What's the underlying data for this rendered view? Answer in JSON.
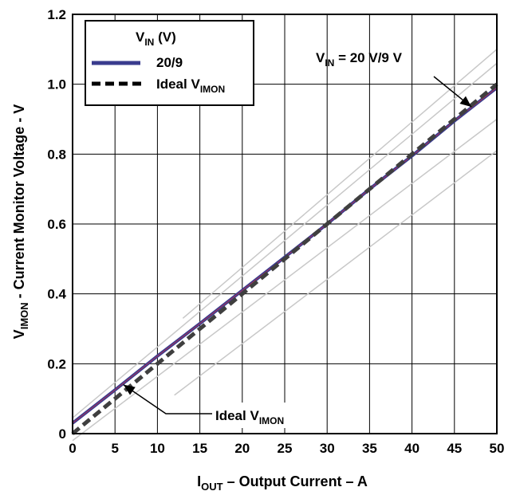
{
  "chart_data": {
    "type": "line",
    "title": "",
    "xlabel": {
      "main": "I",
      "sub": "OUT",
      "rest": " – Output Current – A"
    },
    "ylabel": {
      "main": "V",
      "sub": "IMON",
      "rest": " - Current Monitor Voltage - V"
    },
    "xlim": [
      0,
      50
    ],
    "ylim": [
      0,
      1.2
    ],
    "x_ticks": [
      "0",
      "5",
      "10",
      "15",
      "20",
      "25",
      "30",
      "35",
      "40",
      "45",
      "50"
    ],
    "y_ticks": [
      "0",
      "0.2",
      "0.4",
      "0.6",
      "0.8",
      "1.0",
      "1.2"
    ],
    "grid": true,
    "legend": {
      "position": "top-left",
      "title": {
        "main": "V",
        "sub": "IN",
        "rest": " (V)"
      },
      "entries": [
        {
          "label": {
            "main": "20/9",
            "sub": "",
            "rest": ""
          },
          "style": "solid",
          "color": "#3a3c8e"
        },
        {
          "label": {
            "main": "Ideal V",
            "sub": "IMON",
            "rest": ""
          },
          "style": "dashed",
          "color": "#000000"
        }
      ]
    },
    "series": [
      {
        "name": "20/9",
        "color": "#3a3c8e",
        "x": [
          0,
          5,
          10,
          15,
          20,
          25,
          30,
          35,
          40,
          45,
          50
        ],
        "y": [
          0.03,
          0.125,
          0.222,
          0.315,
          0.41,
          0.505,
          0.6,
          0.7,
          0.795,
          0.895,
          0.99
        ]
      },
      {
        "name": "Ideal VIMON",
        "color": "#3f3f3f",
        "dashed": true,
        "x": [
          0,
          50
        ],
        "y": [
          0,
          1.0
        ]
      }
    ],
    "tolerance_band": {
      "color": "#c8c8c8",
      "lines": [
        {
          "x": [
            13,
            50
          ],
          "y": [
            0.33,
            1.1
          ]
        },
        {
          "x": [
            0,
            50
          ],
          "y": [
            0.045,
            1.06
          ]
        },
        {
          "x": [
            0,
            50
          ],
          "y": [
            -0.02,
            0.9
          ]
        },
        {
          "x": [
            12,
            50
          ],
          "y": [
            0.11,
            0.81
          ]
        }
      ]
    },
    "annotations": [
      {
        "text": {
          "main": "V",
          "sub": "IN",
          "rest": " = 20 V/9 V"
        },
        "target": [
          47,
          0.935
        ]
      },
      {
        "text": {
          "main": "Ideal V",
          "sub": "IMON",
          "rest": ""
        },
        "target": [
          6,
          0.14
        ]
      }
    ]
  }
}
